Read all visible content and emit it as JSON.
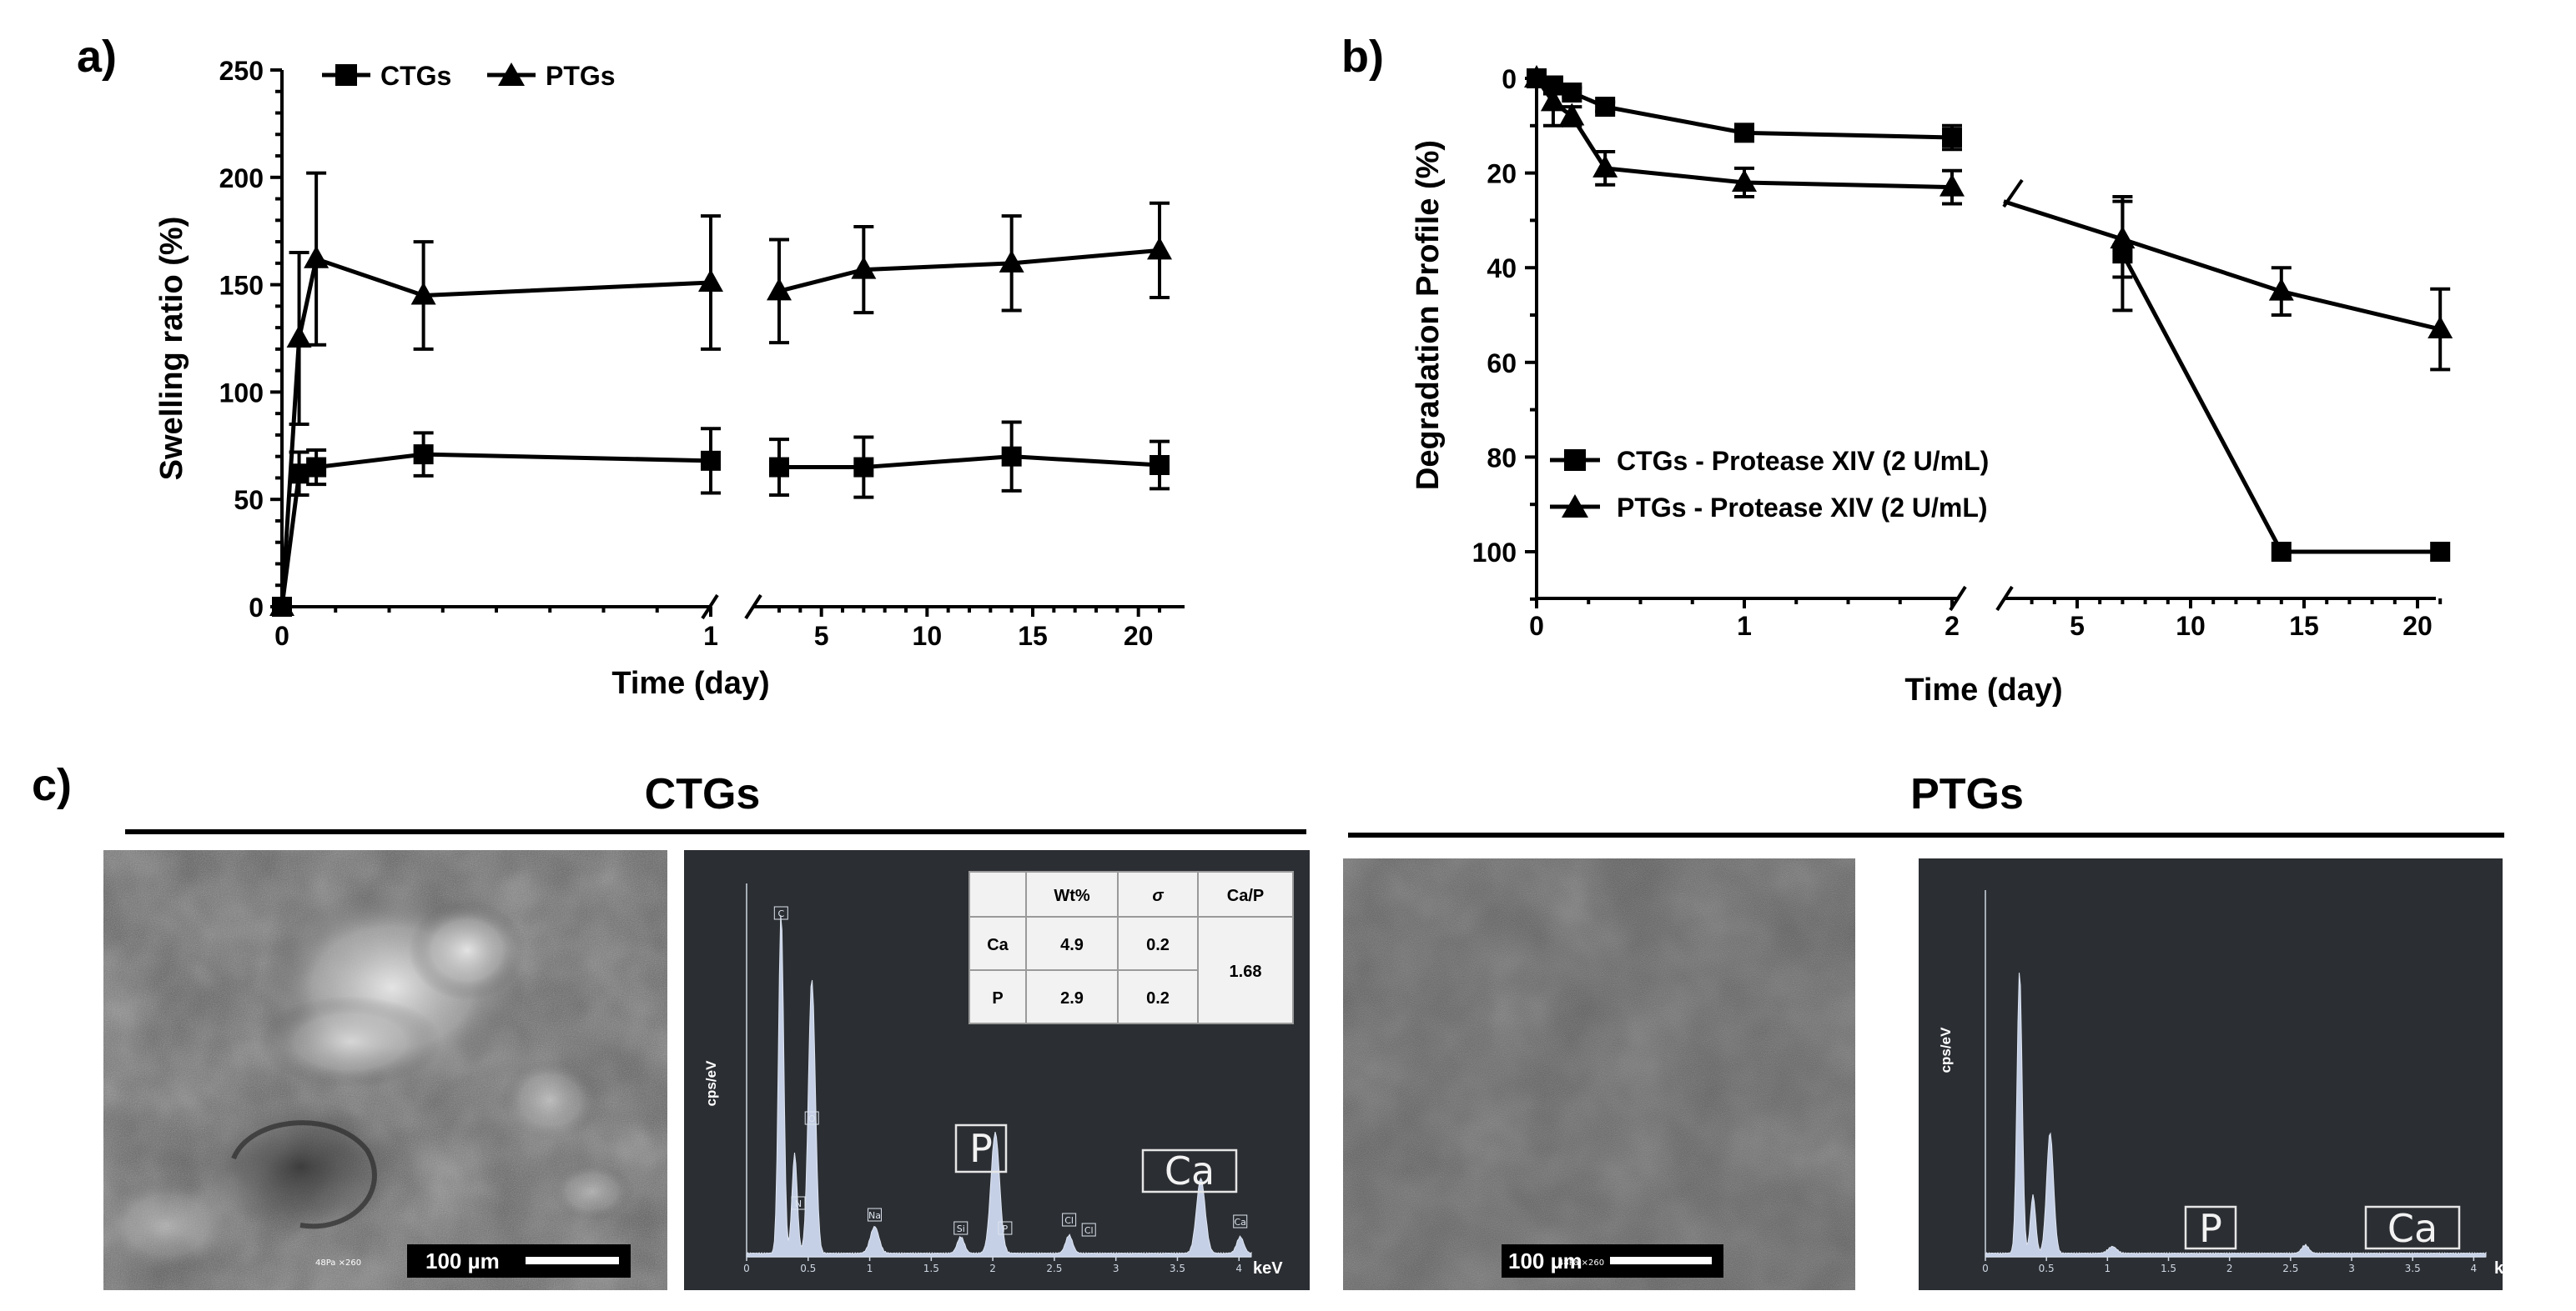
{
  "panel_labels": {
    "a": "a)",
    "b": "b)",
    "c": "c)"
  },
  "chart_data": [
    {
      "id": "a",
      "type": "line",
      "xlabel": "Time (day)",
      "ylabel": "Swelling ratio (%)",
      "ylim": [
        0,
        250
      ],
      "yticks": [
        "0",
        "50",
        "100",
        "150",
        "200",
        "250"
      ],
      "xticks_left": [
        "0",
        "1"
      ],
      "xticks_right": [
        "5",
        "10",
        "15",
        "20"
      ],
      "broken_axis": true,
      "legend_position": "top",
      "series": [
        {
          "name": "CTGs",
          "marker": "square",
          "x": [
            0,
            0.04,
            0.08,
            0.33,
            1,
            3,
            7,
            14,
            21
          ],
          "y": [
            0,
            62,
            65,
            71,
            68,
            65,
            65,
            70,
            66
          ],
          "err": [
            0,
            10,
            8,
            10,
            15,
            13,
            14,
            16,
            11
          ]
        },
        {
          "name": "PTGs",
          "marker": "triangle",
          "x": [
            0,
            0.04,
            0.08,
            0.33,
            1,
            3,
            7,
            14,
            21
          ],
          "y": [
            0,
            125,
            162,
            145,
            151,
            147,
            157,
            160,
            166
          ],
          "err": [
            0,
            40,
            40,
            25,
            31,
            24,
            20,
            22,
            22
          ]
        }
      ]
    },
    {
      "id": "b",
      "type": "line",
      "xlabel": "Time (day)",
      "ylabel": "Degradation Profile (%)",
      "ylim": [
        0,
        100
      ],
      "y_inverted": true,
      "yticks": [
        "0",
        "20",
        "40",
        "60",
        "80",
        "100"
      ],
      "xticks_left": [
        "0",
        "1",
        "2"
      ],
      "xticks_right": [
        "5",
        "10",
        "15",
        "20"
      ],
      "broken_axis": true,
      "legend_position": "bottom-left",
      "series": [
        {
          "name": "CTGs - Protease XIV (2 U/mL)",
          "marker": "square",
          "x": [
            0,
            0.08,
            0.17,
            0.33,
            1,
            2,
            7,
            14,
            21
          ],
          "y": [
            0,
            1.5,
            3,
            6,
            11.5,
            12.5,
            37,
            100,
            100
          ],
          "err": [
            0,
            0,
            1,
            1,
            1,
            2.5,
            12,
            0,
            0
          ]
        },
        {
          "name": "PTGs - Protease XIV (2 U/mL)",
          "marker": "triangle",
          "x": [
            0,
            0.08,
            0.17,
            0.33,
            1,
            2,
            7,
            14,
            21
          ],
          "y": [
            0,
            5,
            8,
            19,
            22,
            23,
            34,
            45,
            53
          ],
          "err": [
            0,
            5,
            2,
            3.5,
            3,
            3.5,
            8,
            5,
            8.5
          ]
        }
      ]
    }
  ],
  "panel_c": {
    "ctgs_title": "CTGs",
    "ptgs_title": "PTGs",
    "sem_scale": "100 µm",
    "sem_meta": "48Pa  ×260",
    "eds_yaxis": "cps/eV",
    "eds_xunit": "keV",
    "eds_xticks": [
      "0",
      "0.5",
      "1",
      "1.5",
      "2",
      "2.5",
      "3",
      "3.5",
      "4"
    ],
    "ctgs_spectrum_labels": {
      "P": "P",
      "Ca": "Ca"
    },
    "ptgs_spectrum_labels": {
      "P": "P",
      "Ca": "Ca"
    },
    "small_peak_labels": [
      "C",
      "O",
      "N",
      "Na",
      "Si",
      "P",
      "Cl",
      "Cl",
      "Ca"
    ],
    "table": {
      "headers": [
        "",
        "Wt%",
        "σ",
        "Ca/P"
      ],
      "rows": [
        {
          "element": "Ca",
          "wt": "4.9",
          "sigma": "0.2"
        },
        {
          "element": "P",
          "wt": "2.9",
          "sigma": "0.2"
        }
      ],
      "ratio": "1.68"
    }
  }
}
